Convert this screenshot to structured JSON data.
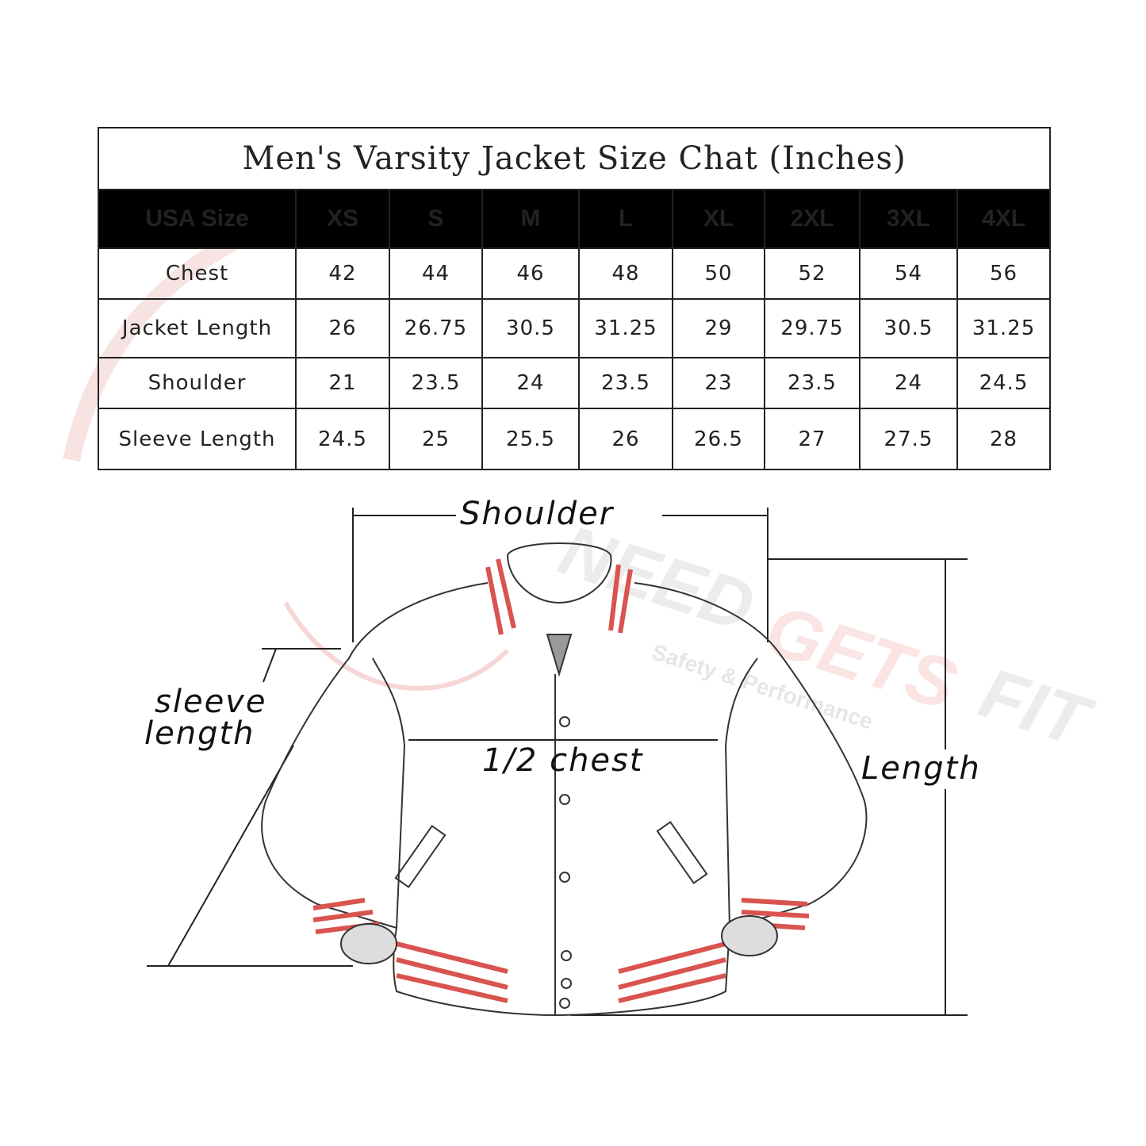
{
  "table": {
    "title": "Men's Varsity Jacket Size Chat (Inches)",
    "header": [
      "USA Size",
      "XS",
      "S",
      "M",
      "L",
      "XL",
      "2XL",
      "3XL",
      "4XL"
    ],
    "rows": [
      {
        "label": "Chest",
        "values": [
          "42",
          "44",
          "46",
          "48",
          "50",
          "52",
          "54",
          "56"
        ]
      },
      {
        "label": "Jacket Length",
        "values": [
          "26",
          "26.75",
          "30.5",
          "31.25",
          "29",
          "29.75",
          "30.5",
          "31.25"
        ]
      },
      {
        "label": "Shoulder",
        "values": [
          "21",
          "23.5",
          "24",
          "23.5",
          "23",
          "23.5",
          "24",
          "24.5"
        ]
      },
      {
        "label": "Sleeve Length",
        "values": [
          "24.5",
          "25",
          "25.5",
          "26",
          "26.5",
          "27",
          "27.5",
          "28"
        ]
      }
    ]
  },
  "diagram": {
    "shoulder": "Shoulder",
    "sleeve_line1": "sleeve",
    "sleeve_line2": "length",
    "chest": "1/2 chest",
    "length": "Length",
    "stripe_color": "#d9534f"
  },
  "watermark": {
    "brand": "NEED GETS FIT",
    "tagline": "Safety & Performance",
    "colors": [
      "#e8e8e8",
      "#f6d6d6"
    ]
  }
}
